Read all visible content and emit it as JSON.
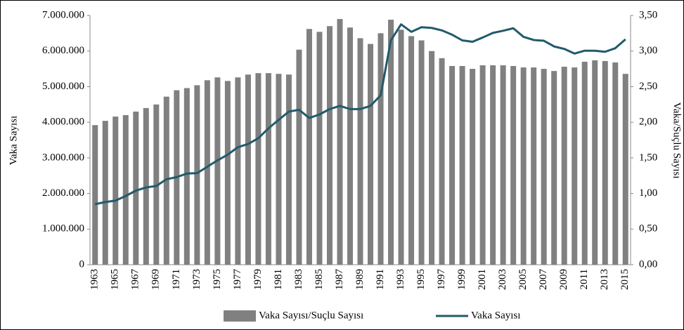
{
  "chart_data": {
    "type": "bar_line",
    "y_label": "Vaka Sayısı",
    "y2_label": "Vaka/Suçlu Sayısı",
    "categories": [
      "1963",
      null,
      "1965",
      null,
      "1967",
      null,
      "1969",
      null,
      "1971",
      null,
      "1973",
      null,
      "1975",
      null,
      "1977",
      null,
      "1979",
      null,
      "1981",
      null,
      "1983",
      null,
      "1985",
      null,
      "1987",
      null,
      "1989",
      null,
      "1991",
      null,
      "1993",
      null,
      "1995",
      null,
      "1997",
      null,
      "1999",
      null,
      "2001",
      null,
      "2003",
      null,
      "2005",
      null,
      "2007",
      null,
      "2009",
      null,
      "2011",
      null,
      "2013",
      null,
      "2015"
    ],
    "series": [
      {
        "name": "Vaka Sayısı/Suçlu Sayısı",
        "type": "bar",
        "axis": "y2",
        "color": "#808080",
        "values": [
          1.96,
          2.02,
          2.08,
          2.1,
          2.15,
          2.2,
          2.25,
          2.36,
          2.45,
          2.48,
          2.52,
          2.59,
          2.63,
          2.58,
          2.63,
          2.67,
          2.69,
          2.69,
          2.68,
          2.67,
          3.02,
          3.31,
          3.27,
          3.35,
          3.45,
          3.33,
          3.18,
          3.1,
          3.25,
          3.44,
          3.3,
          3.21,
          3.15,
          3.0,
          2.9,
          2.79,
          2.79,
          2.75,
          2.8,
          2.8,
          2.8,
          2.79,
          2.77,
          2.77,
          2.75,
          2.72,
          2.78,
          2.77,
          2.85,
          2.87,
          2.86,
          2.84,
          2.68
        ]
      },
      {
        "name": "Vaka Sayısı",
        "type": "line",
        "axis": "y",
        "color": "#215a6a",
        "values": [
          1700000,
          1760000,
          1800000,
          1930000,
          2080000,
          2170000,
          2210000,
          2400000,
          2460000,
          2560000,
          2570000,
          2750000,
          2930000,
          3090000,
          3300000,
          3390000,
          3550000,
          3830000,
          4070000,
          4300000,
          4350000,
          4120000,
          4220000,
          4370000,
          4460000,
          4370000,
          4370000,
          4460000,
          4760000,
          6300000,
          6750000,
          6540000,
          6670000,
          6650000,
          6580000,
          6460000,
          6300000,
          6260000,
          6380000,
          6510000,
          6570000,
          6640000,
          6400000,
          6310000,
          6290000,
          6130000,
          6060000,
          5930000,
          6010000,
          6010000,
          5980000,
          6080000,
          6330000
        ]
      }
    ],
    "ylim": [
      0,
      7000000
    ],
    "yticks": [
      0,
      {
        "value": 1000000,
        "label": "1.000.000"
      },
      {
        "value": 2000000,
        "label": "2.000.000"
      },
      {
        "value": 3000000,
        "label": "3.000.000"
      },
      {
        "value": 4000000,
        "label": "4.000.000"
      },
      {
        "value": 5000000,
        "label": "5.000.000"
      },
      {
        "value": 6000000,
        "label": "6.000.000"
      },
      {
        "value": 7000000,
        "label": "7.000.000"
      }
    ],
    "y2lim": [
      0,
      3.5
    ],
    "y2ticks": [
      {
        "value": 0,
        "label": "0,00"
      },
      {
        "value": 0.5,
        "label": "0,50"
      },
      {
        "value": 1,
        "label": "1,00"
      },
      {
        "value": 1.5,
        "label": "1,50"
      },
      {
        "value": 2,
        "label": "2,00"
      },
      {
        "value": 2.5,
        "label": "2,50"
      },
      {
        "value": 3,
        "label": "3,00"
      },
      {
        "value": 3.5,
        "label": "3,50"
      }
    ],
    "legend": "bottom"
  }
}
